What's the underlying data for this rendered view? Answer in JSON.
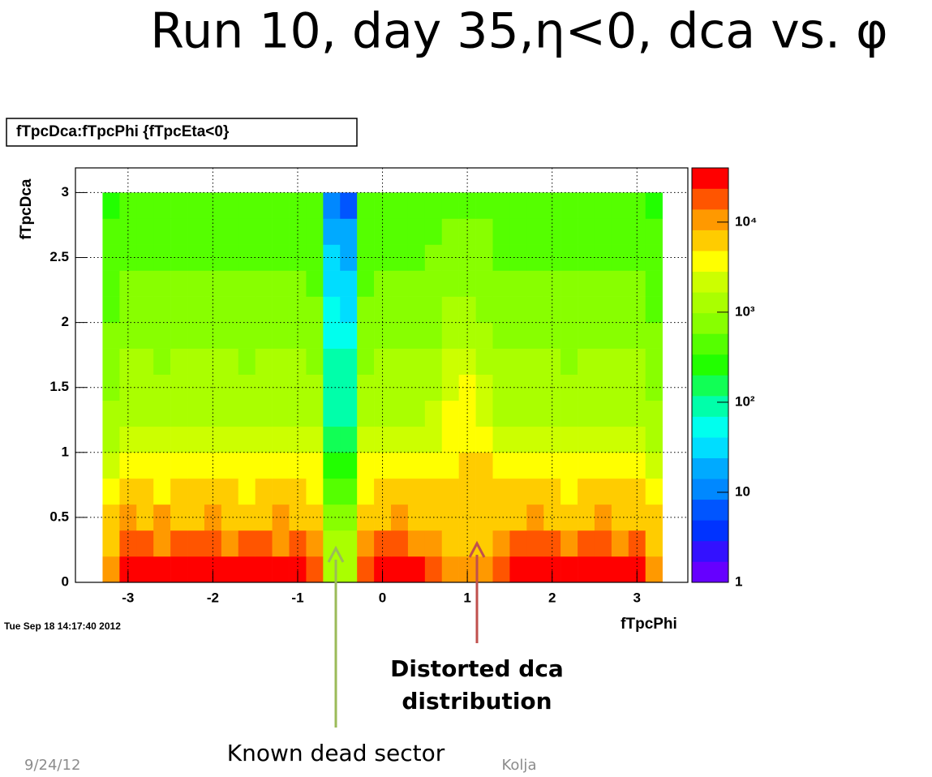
{
  "chart_data": {
    "type": "heatmap",
    "title": "Run 10, day 35,η<0, dca vs. φ",
    "subtitle": "fTpcDca:fTpcPhi {fTpcEta<0}",
    "x_label": "fTpcPhi",
    "y_label": "fTpcDca",
    "timestamp": "Tue Sep 18 14:17:40 2012",
    "annotations": [
      "Distorted dca",
      "distribution",
      "Known dead sector"
    ],
    "footer": [
      "9/24/12",
      "Kolja"
    ],
    "xlim": [
      -3.62,
      3.6
    ],
    "xticks": [
      -3,
      -2,
      -1,
      0,
      1,
      2,
      3
    ],
    "ylim": [
      0,
      3.19
    ],
    "yticks": [
      0,
      0.5,
      1,
      1.5,
      2,
      2.5,
      3
    ],
    "zlim": [
      1,
      40000
    ],
    "zlog": true,
    "zticks": [
      1,
      10,
      {
        "value": 100,
        "label": "10²"
      },
      {
        "value": 1000,
        "label": "10³"
      },
      {
        "value": 10000,
        "label": "10⁴"
      }
    ],
    "grid": true,
    "palette": [
      "#6600ff",
      "#3311ff",
      "#0033ff",
      "#0055ff",
      "#0088ff",
      "#00aaff",
      "#00ddff",
      "#00ffee",
      "#00ffaa",
      "#11ff55",
      "#22ff00",
      "#55ff00",
      "#88ff00",
      "#aaff00",
      "#ccff00",
      "#ffff00",
      "#ffcc00",
      "#ff9900",
      "#ff5500",
      "#ff0000"
    ],
    "xbins": [
      -3.3,
      -3.1,
      -2.9,
      -2.7,
      -2.5,
      -2.3,
      -2.1,
      -1.9,
      -1.7,
      -1.5,
      -1.3,
      -1.1,
      -0.9,
      -0.7,
      -0.5,
      -0.3,
      -0.1,
      0.1,
      0.3,
      0.5,
      0.7,
      0.9,
      1.1,
      1.3,
      1.5,
      1.7,
      1.9,
      2.1,
      2.3,
      2.5,
      2.7,
      2.9,
      3.1,
      3.3
    ],
    "ybins": [
      0,
      0.2,
      0.4,
      0.6,
      0.8,
      1.0,
      1.2,
      1.4,
      1.6,
      1.8,
      2.0,
      2.2,
      2.4,
      2.6,
      2.8,
      3.0
    ],
    "values": [
      [
        12000,
        26000,
        27000,
        26000,
        27000,
        26000,
        25000,
        26000,
        27000,
        26000,
        25000,
        26000,
        18000,
        1500,
        1400,
        20000,
        24000,
        26000,
        25000,
        22000,
        9000,
        9000,
        10000,
        20000,
        24000,
        26000,
        27000,
        26000,
        27000,
        26000,
        25000,
        24000,
        12000
      ],
      [
        8000,
        14000,
        15000,
        13000,
        14000,
        15000,
        14000,
        13000,
        15000,
        14000,
        13000,
        14000,
        12000,
        1200,
        1100,
        13000,
        14000,
        15000,
        13000,
        12000,
        8000,
        7500,
        8000,
        13000,
        14000,
        15000,
        14000,
        13000,
        15000,
        14000,
        13000,
        14000,
        8000
      ],
      [
        5000,
        8500,
        8000,
        8200,
        7800,
        8000,
        8300,
        7900,
        8100,
        8000,
        8200,
        7800,
        7000,
        900,
        850,
        7500,
        8000,
        8200,
        8000,
        7800,
        6500,
        7000,
        6800,
        7800,
        8000,
        8200,
        7900,
        8100,
        8000,
        8300,
        7800,
        8000,
        5000
      ],
      [
        3500,
        5000,
        5200,
        4800,
        5100,
        4900,
        5000,
        5200,
        4800,
        5000,
        5100,
        4900,
        4500,
        500,
        480,
        4700,
        5000,
        4900,
        5100,
        5000,
        5500,
        7000,
        6000,
        5000,
        4900,
        5100,
        5000,
        4800,
        5200,
        5000,
        4900,
        5000,
        3500
      ],
      [
        2500,
        3500,
        3400,
        3600,
        3500,
        3300,
        3500,
        3600,
        3400,
        3500,
        3500,
        3400,
        3000,
        250,
        240,
        3200,
        3500,
        3400,
        3300,
        3500,
        4500,
        6500,
        5000,
        3500,
        3400,
        3600,
        3500,
        3300,
        3500,
        3600,
        3400,
        3500,
        2500
      ],
      [
        1500,
        2000,
        2100,
        1900,
        2000,
        2000,
        2100,
        1900,
        2000,
        2000,
        1900,
        2000,
        1800,
        150,
        140,
        1900,
        2000,
        2100,
        2000,
        2200,
        3500,
        4500,
        3500,
        2100,
        2000,
        1900,
        2000,
        2100,
        1900,
        2000,
        2000,
        2000,
        1500
      ],
      [
        1100,
        1500,
        1500,
        1400,
        1500,
        1600,
        1500,
        1400,
        1500,
        1500,
        1500,
        1400,
        1300,
        110,
        100,
        1400,
        1500,
        1500,
        1400,
        1700,
        3000,
        3800,
        2800,
        1600,
        1500,
        1400,
        1500,
        1500,
        1600,
        1500,
        1400,
        1500,
        1100
      ],
      [
        900,
        1200,
        1250,
        1200,
        1150,
        1200,
        1200,
        1250,
        1200,
        1100,
        1200,
        1200,
        1100,
        90,
        85,
        1150,
        1200,
        1200,
        1200,
        1400,
        2500,
        3200,
        2200,
        1300,
        1200,
        1200,
        1150,
        1200,
        1250,
        1200,
        1200,
        1200,
        900
      ],
      [
        750,
        1000,
        1000,
        950,
        1000,
        1050,
        1000,
        1000,
        950,
        1000,
        1000,
        1000,
        900,
        80,
        75,
        950,
        1000,
        1000,
        1000,
        1200,
        2000,
        2500,
        1500,
        1100,
        1000,
        1000,
        1000,
        950,
        1000,
        1000,
        1000,
        1000,
        750
      ],
      [
        600,
        800,
        820,
        800,
        780,
        800,
        800,
        820,
        800,
        800,
        780,
        800,
        700,
        60,
        55,
        750,
        800,
        800,
        800,
        950,
        1300,
        1400,
        1100,
        850,
        800,
        800,
        780,
        800,
        820,
        800,
        800,
        800,
        600
      ],
      [
        550,
        700,
        700,
        680,
        700,
        720,
        700,
        700,
        680,
        700,
        700,
        700,
        620,
        45,
        40,
        650,
        700,
        700,
        700,
        800,
        1000,
        1100,
        900,
        720,
        700,
        700,
        700,
        680,
        700,
        720,
        700,
        700,
        550
      ],
      [
        450,
        600,
        600,
        600,
        580,
        600,
        620,
        600,
        600,
        580,
        600,
        600,
        520,
        35,
        30,
        560,
        600,
        600,
        600,
        650,
        800,
        850,
        750,
        620,
        600,
        600,
        600,
        580,
        600,
        620,
        600,
        600,
        450
      ],
      [
        400,
        550,
        540,
        550,
        560,
        550,
        540,
        550,
        560,
        550,
        540,
        550,
        480,
        25,
        22,
        500,
        550,
        550,
        550,
        580,
        700,
        700,
        650,
        560,
        550,
        540,
        550,
        560,
        550,
        550,
        540,
        550,
        400
      ],
      [
        350,
        500,
        500,
        480,
        500,
        520,
        500,
        500,
        480,
        500,
        500,
        500,
        430,
        18,
        15,
        460,
        500,
        500,
        500,
        520,
        600,
        620,
        580,
        500,
        500,
        480,
        500,
        500,
        520,
        500,
        480,
        500,
        350
      ],
      [
        250,
        420,
        400,
        410,
        400,
        390,
        400,
        420,
        400,
        410,
        400,
        390,
        350,
        10,
        8,
        380,
        400,
        410,
        400,
        420,
        480,
        500,
        460,
        400,
        410,
        400,
        390,
        400,
        420,
        400,
        380,
        400,
        250
      ]
    ]
  }
}
